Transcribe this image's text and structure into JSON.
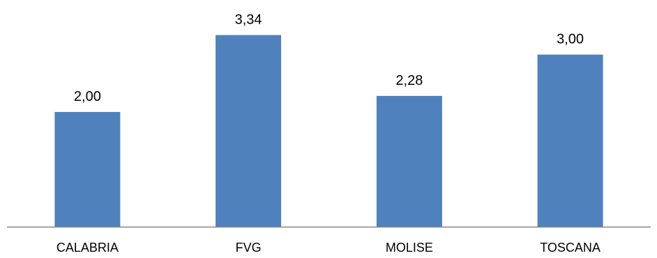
{
  "chart_data": {
    "type": "bar",
    "title": "",
    "xlabel": "",
    "ylabel": "",
    "categories": [
      "CALABRIA",
      "FVG",
      "MOLISE",
      "TOSCANA"
    ],
    "values": [
      2.0,
      3.34,
      2.28,
      3.0
    ],
    "value_labels": [
      "2,00",
      "3,34",
      "2,28",
      "3,00"
    ],
    "ylim": [
      0,
      3.5
    ],
    "grid": false,
    "legend": "none",
    "bar_color": "#4f81bd",
    "axis_color": "#868686"
  }
}
